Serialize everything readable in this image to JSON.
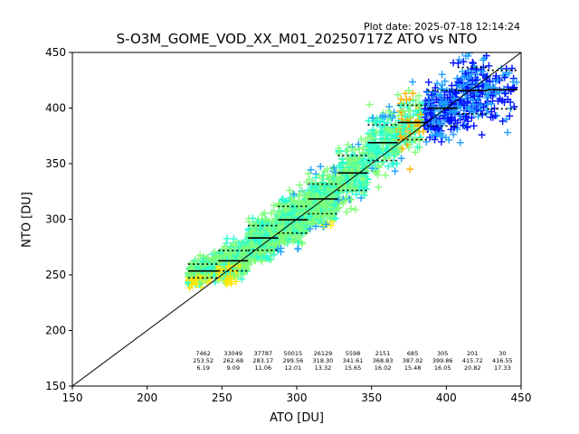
{
  "plot_date": "Plot date: 2025-07-18 12:14:24",
  "chart_data": {
    "type": "scatter",
    "title": "S-O3M_GOME_VOD_XX_M01_20250717Z ATO vs NTO",
    "xlabel": "ATO [DU]",
    "ylabel": "NTO [DU]",
    "xlim": [
      150,
      450
    ],
    "ylim": [
      150,
      450
    ],
    "x_ticks": [
      "150",
      "200",
      "250",
      "300",
      "350",
      "400",
      "450"
    ],
    "y_ticks": [
      "150",
      "200",
      "250",
      "300",
      "350",
      "400",
      "450"
    ],
    "grid": false,
    "legend": "none",
    "reference_line": {
      "style": "1:1",
      "color": "#000000"
    },
    "colors": {
      "density_low": "#ffe600",
      "density_mid1": "#7fff7a",
      "density_mid2": "#29ffd0",
      "density_high1": "#1ea0ff",
      "density_high2": "#0010ff",
      "density_orange": "#ffb300"
    },
    "bins": [
      {
        "x_center": 237.5,
        "count": "7462",
        "mean": "253.52",
        "std": "6.19",
        "mean_value": 253.52,
        "std_value": 6.19
      },
      {
        "x_center": 257.5,
        "count": "33049",
        "mean": "262.68",
        "std": "9.09",
        "mean_value": 262.68,
        "std_value": 9.09
      },
      {
        "x_center": 277.5,
        "count": "37787",
        "mean": "283.17",
        "std": "11.06",
        "mean_value": 283.17,
        "std_value": 11.06
      },
      {
        "x_center": 297.5,
        "count": "50015",
        "mean": "299.56",
        "std": "12.01",
        "mean_value": 299.56,
        "std_value": 12.01
      },
      {
        "x_center": 317.5,
        "count": "26129",
        "mean": "318.30",
        "std": "13.32",
        "mean_value": 318.3,
        "std_value": 13.32
      },
      {
        "x_center": 337.5,
        "count": "5598",
        "mean": "341.61",
        "std": "15.65",
        "mean_value": 341.61,
        "std_value": 15.65
      },
      {
        "x_center": 357.5,
        "count": "2151",
        "mean": "368.83",
        "std": "16.02",
        "mean_value": 368.83,
        "std_value": 16.02
      },
      {
        "x_center": 377.5,
        "count": "685",
        "mean": "387.02",
        "std": "15.48",
        "mean_value": 387.02,
        "std_value": 15.48
      },
      {
        "x_center": 397.5,
        "count": "305",
        "mean": "399.86",
        "std": "16.05",
        "mean_value": 399.86,
        "std_value": 16.05
      },
      {
        "x_center": 417.5,
        "count": "201",
        "mean": "415.72",
        "std": "20.82",
        "mean_value": 415.72,
        "std_value": 20.82
      },
      {
        "x_center": 437.5,
        "count": "30",
        "mean": "416.55",
        "std": "17.33",
        "mean_value": 416.55,
        "std_value": 17.33
      }
    ]
  }
}
